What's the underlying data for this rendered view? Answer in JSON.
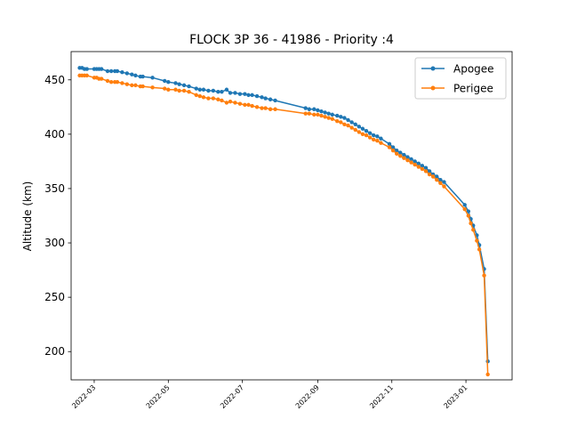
{
  "chart_data": {
    "type": "line",
    "title": "FLOCK 3P 36 - 41986 - Priority :4",
    "xlabel": "",
    "ylabel": "Altitude (km)",
    "xlim": [
      "2022-02-10",
      "2023-02-08"
    ],
    "ylim": [
      174,
      476
    ],
    "x_ticks": [
      "2022-03",
      "2022-05",
      "2022-07",
      "2022-09",
      "2022-11",
      "2023-01"
    ],
    "y_ticks": [
      200,
      250,
      300,
      350,
      400,
      450
    ],
    "grid": false,
    "legend_position": "top-right",
    "colors": {
      "Apogee": "#1f77b4",
      "Perigee": "#ff7f0e"
    },
    "series": [
      {
        "name": "Apogee",
        "points": [
          [
            "2022-02-17",
            461
          ],
          [
            "2022-02-19",
            461
          ],
          [
            "2022-02-21",
            460
          ],
          [
            "2022-02-23",
            460
          ],
          [
            "2022-03-01",
            460
          ],
          [
            "2022-03-03",
            460
          ],
          [
            "2022-03-05",
            460
          ],
          [
            "2022-03-07",
            460
          ],
          [
            "2022-03-12",
            458
          ],
          [
            "2022-03-15",
            458
          ],
          [
            "2022-03-18",
            458
          ],
          [
            "2022-03-20",
            458
          ],
          [
            "2022-03-24",
            457
          ],
          [
            "2022-03-28",
            456
          ],
          [
            "2022-04-01",
            455
          ],
          [
            "2022-04-04",
            454
          ],
          [
            "2022-04-08",
            453
          ],
          [
            "2022-04-10",
            453
          ],
          [
            "2022-04-18",
            452
          ],
          [
            "2022-04-28",
            449
          ],
          [
            "2022-05-01",
            448
          ],
          [
            "2022-05-07",
            447
          ],
          [
            "2022-05-10",
            446
          ],
          [
            "2022-05-14",
            445
          ],
          [
            "2022-05-18",
            444
          ],
          [
            "2022-05-24",
            442
          ],
          [
            "2022-05-27",
            441
          ],
          [
            "2022-05-30",
            441
          ],
          [
            "2022-06-03",
            440
          ],
          [
            "2022-06-07",
            440
          ],
          [
            "2022-06-11",
            439
          ],
          [
            "2022-06-14",
            439
          ],
          [
            "2022-06-18",
            441
          ],
          [
            "2022-06-21",
            438
          ],
          [
            "2022-06-25",
            438
          ],
          [
            "2022-06-29",
            437
          ],
          [
            "2022-07-03",
            437
          ],
          [
            "2022-07-06",
            436
          ],
          [
            "2022-07-09",
            436
          ],
          [
            "2022-07-13",
            435
          ],
          [
            "2022-07-17",
            434
          ],
          [
            "2022-07-20",
            433
          ],
          [
            "2022-07-24",
            432
          ],
          [
            "2022-07-28",
            431
          ],
          [
            "2022-08-22",
            424
          ],
          [
            "2022-08-25",
            423
          ],
          [
            "2022-08-29",
            423
          ],
          [
            "2022-09-01",
            422
          ],
          [
            "2022-09-04",
            421
          ],
          [
            "2022-09-07",
            420
          ],
          [
            "2022-09-10",
            419
          ],
          [
            "2022-09-13",
            418
          ],
          [
            "2022-09-17",
            417
          ],
          [
            "2022-09-20",
            416
          ],
          [
            "2022-09-23",
            415
          ],
          [
            "2022-09-26",
            413
          ],
          [
            "2022-09-29",
            411
          ],
          [
            "2022-10-02",
            409
          ],
          [
            "2022-10-05",
            407
          ],
          [
            "2022-10-08",
            405
          ],
          [
            "2022-10-11",
            403
          ],
          [
            "2022-10-14",
            401
          ],
          [
            "2022-10-17",
            399
          ],
          [
            "2022-10-20",
            398
          ],
          [
            "2022-10-23",
            396
          ],
          [
            "2022-10-30",
            391
          ],
          [
            "2022-11-02",
            388
          ],
          [
            "2022-11-05",
            385
          ],
          [
            "2022-11-08",
            383
          ],
          [
            "2022-11-11",
            381
          ],
          [
            "2022-11-14",
            379
          ],
          [
            "2022-11-17",
            377
          ],
          [
            "2022-11-20",
            375
          ],
          [
            "2022-11-23",
            373
          ],
          [
            "2022-11-26",
            371
          ],
          [
            "2022-11-29",
            369
          ],
          [
            "2022-12-02",
            366
          ],
          [
            "2022-12-05",
            363
          ],
          [
            "2022-12-08",
            361
          ],
          [
            "2022-12-11",
            358
          ],
          [
            "2022-12-14",
            356
          ],
          [
            "2022-12-31",
            335
          ],
          [
            "2023-01-03",
            329
          ],
          [
            "2023-01-05",
            322
          ],
          [
            "2023-01-07",
            316
          ],
          [
            "2023-01-10",
            307
          ],
          [
            "2023-01-12",
            298
          ],
          [
            "2023-01-16",
            276
          ],
          [
            "2023-01-19",
            191
          ]
        ]
      },
      {
        "name": "Perigee",
        "points": [
          [
            "2022-02-17",
            454
          ],
          [
            "2022-02-19",
            454
          ],
          [
            "2022-02-21",
            454
          ],
          [
            "2022-02-23",
            454
          ],
          [
            "2022-03-01",
            452
          ],
          [
            "2022-03-03",
            452
          ],
          [
            "2022-03-05",
            451
          ],
          [
            "2022-03-07",
            451
          ],
          [
            "2022-03-12",
            449
          ],
          [
            "2022-03-15",
            448
          ],
          [
            "2022-03-18",
            448
          ],
          [
            "2022-03-20",
            448
          ],
          [
            "2022-03-24",
            447
          ],
          [
            "2022-03-28",
            446
          ],
          [
            "2022-04-01",
            445
          ],
          [
            "2022-04-04",
            445
          ],
          [
            "2022-04-08",
            444
          ],
          [
            "2022-04-10",
            444
          ],
          [
            "2022-04-18",
            443
          ],
          [
            "2022-04-28",
            442
          ],
          [
            "2022-05-01",
            441
          ],
          [
            "2022-05-07",
            441
          ],
          [
            "2022-05-10",
            440
          ],
          [
            "2022-05-14",
            440
          ],
          [
            "2022-05-18",
            439
          ],
          [
            "2022-05-24",
            436
          ],
          [
            "2022-05-27",
            435
          ],
          [
            "2022-05-30",
            434
          ],
          [
            "2022-06-03",
            433
          ],
          [
            "2022-06-07",
            433
          ],
          [
            "2022-06-11",
            432
          ],
          [
            "2022-06-14",
            431
          ],
          [
            "2022-06-18",
            429
          ],
          [
            "2022-06-21",
            430
          ],
          [
            "2022-06-25",
            429
          ],
          [
            "2022-06-29",
            428
          ],
          [
            "2022-07-03",
            427
          ],
          [
            "2022-07-06",
            427
          ],
          [
            "2022-07-09",
            426
          ],
          [
            "2022-07-13",
            425
          ],
          [
            "2022-07-17",
            424
          ],
          [
            "2022-07-20",
            424
          ],
          [
            "2022-07-24",
            423
          ],
          [
            "2022-07-28",
            423
          ],
          [
            "2022-08-22",
            419
          ],
          [
            "2022-08-25",
            419
          ],
          [
            "2022-08-29",
            418
          ],
          [
            "2022-09-01",
            418
          ],
          [
            "2022-09-04",
            417
          ],
          [
            "2022-09-07",
            416
          ],
          [
            "2022-09-10",
            415
          ],
          [
            "2022-09-13",
            414
          ],
          [
            "2022-09-17",
            412
          ],
          [
            "2022-09-20",
            411
          ],
          [
            "2022-09-23",
            409
          ],
          [
            "2022-09-26",
            408
          ],
          [
            "2022-09-29",
            406
          ],
          [
            "2022-10-02",
            404
          ],
          [
            "2022-10-05",
            402
          ],
          [
            "2022-10-08",
            400
          ],
          [
            "2022-10-11",
            399
          ],
          [
            "2022-10-14",
            397
          ],
          [
            "2022-10-17",
            395
          ],
          [
            "2022-10-20",
            394
          ],
          [
            "2022-10-23",
            392
          ],
          [
            "2022-10-30",
            388
          ],
          [
            "2022-11-02",
            385
          ],
          [
            "2022-11-05",
            382
          ],
          [
            "2022-11-08",
            380
          ],
          [
            "2022-11-11",
            378
          ],
          [
            "2022-11-14",
            376
          ],
          [
            "2022-11-17",
            374
          ],
          [
            "2022-11-20",
            372
          ],
          [
            "2022-11-23",
            370
          ],
          [
            "2022-11-26",
            368
          ],
          [
            "2022-11-29",
            366
          ],
          [
            "2022-12-02",
            363
          ],
          [
            "2022-12-05",
            361
          ],
          [
            "2022-12-08",
            358
          ],
          [
            "2022-12-11",
            355
          ],
          [
            "2022-12-14",
            352
          ],
          [
            "2022-12-31",
            331
          ],
          [
            "2023-01-03",
            325
          ],
          [
            "2023-01-05",
            318
          ],
          [
            "2023-01-07",
            312
          ],
          [
            "2023-01-10",
            302
          ],
          [
            "2023-01-12",
            294
          ],
          [
            "2023-01-16",
            270
          ],
          [
            "2023-01-19",
            179
          ]
        ]
      }
    ]
  }
}
